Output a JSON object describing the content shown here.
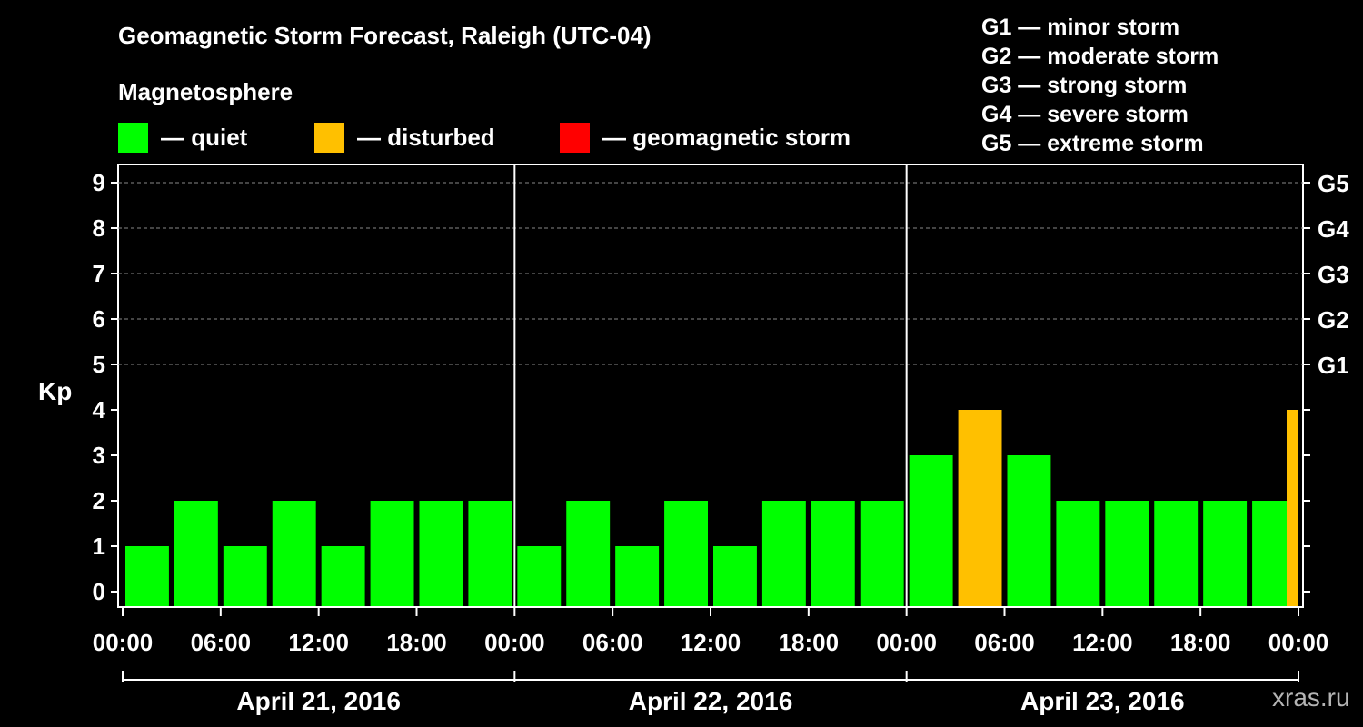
{
  "chart_data": {
    "type": "bar",
    "title": "Geomagnetic Storm Forecast, Raleigh (UTC-04)",
    "subtitle": "Magnetosphere",
    "ylabel": "Kp",
    "ylim": [
      0,
      9
    ],
    "yticks": [
      0,
      1,
      2,
      3,
      4,
      5,
      6,
      7,
      8,
      9
    ],
    "g_scale": [
      {
        "kp": 5,
        "label": "G1"
      },
      {
        "kp": 6,
        "label": "G2"
      },
      {
        "kp": 7,
        "label": "G3"
      },
      {
        "kp": 8,
        "label": "G4"
      },
      {
        "kp": 9,
        "label": "G5"
      }
    ],
    "x_tick_labels": [
      "00:00",
      "06:00",
      "12:00",
      "18:00",
      "00:00",
      "06:00",
      "12:00",
      "18:00",
      "00:00",
      "06:00",
      "12:00",
      "18:00",
      "00:00"
    ],
    "days": [
      "April 21, 2016",
      "April 22, 2016",
      "April 23, 2016"
    ],
    "interval_hours": 3,
    "values": [
      1,
      2,
      1,
      2,
      1,
      2,
      2,
      2,
      1,
      2,
      1,
      2,
      1,
      2,
      2,
      2,
      3,
      4,
      3,
      2,
      2,
      2,
      2,
      2,
      4
    ],
    "legend": [
      {
        "label": "— quiet",
        "color": "#00ff00"
      },
      {
        "label": "— disturbed",
        "color": "#ffc000"
      },
      {
        "label": "— geomagnetic storm",
        "color": "#ff0000"
      }
    ],
    "g_legend": [
      "G1 — minor storm",
      "G2 — moderate storm",
      "G3 — strong storm",
      "G4 — severe storm",
      "G5 — extreme storm"
    ],
    "colors": {
      "quiet": "#00ff00",
      "disturbed": "#ffc000",
      "storm": "#ff0000"
    },
    "grid": true
  },
  "watermark": "xras.ru"
}
